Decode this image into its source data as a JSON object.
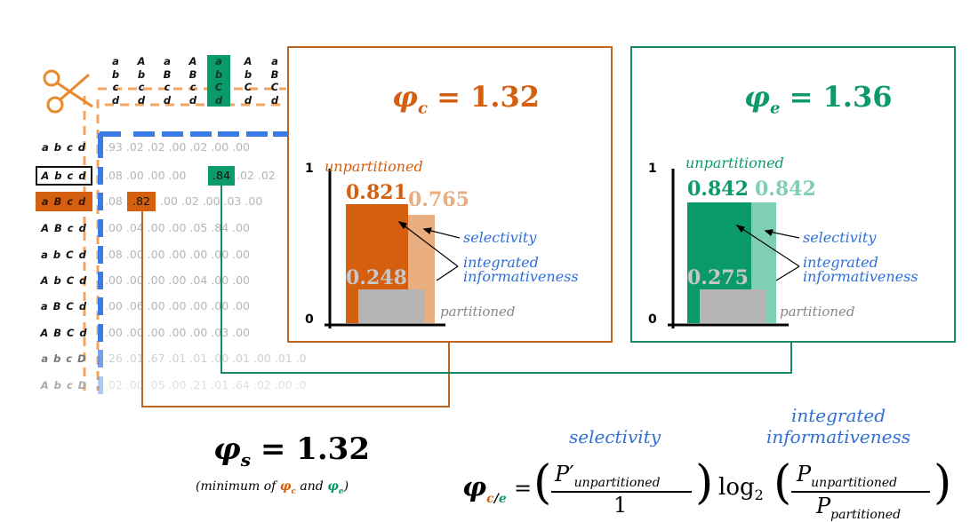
{
  "columns": [
    {
      "l1": "a",
      "l2": "b",
      "l3": "c",
      "l4": "d"
    },
    {
      "l1": "A",
      "l2": "b",
      "l3": "c",
      "l4": "d"
    },
    {
      "l1": "a",
      "l2": "B",
      "l3": "c",
      "l4": "d"
    },
    {
      "l1": "A",
      "l2": "B",
      "l3": "c",
      "l4": "d"
    },
    {
      "l1": "a",
      "l2": "b",
      "l3": "C",
      "l4": "d"
    },
    {
      "l1": "A",
      "l2": "b",
      "l3": "C",
      "l4": "d"
    },
    {
      "l1": "a",
      "l2": "B",
      "l3": "C",
      "l4": "d"
    }
  ],
  "rows": [
    {
      "label": "a b c d",
      "values": ".93 .02 .02 .00 .02 .00 .00"
    },
    {
      "label": "A b c d",
      "values": ".08 .00 .00 .00",
      "values2": ".02 .02"
    },
    {
      "label": "a B c d",
      "values": ".08",
      "values2": ".00 .02 .00 .03 .00"
    },
    {
      "label": "A B c d",
      "values": ".00 .04 .00 .00 .05 .84 .00"
    },
    {
      "label": "a b C d",
      "values": ".08 .00 .00 .00 .00 .00 .00"
    },
    {
      "label": "A b C d",
      "values": ".00 .00 .00 .00 .04 .00 .00"
    },
    {
      "label": "a B C d",
      "values": ".00 .06 .00 .00 .00 .00 .00"
    },
    {
      "label": "A B C d",
      "values": ".00 .00 .00 .00 .00 .03 .00"
    },
    {
      "label": "a b c D",
      "values": ".26 .01 .67 .01 .01 .00 .01 .00 .01 .0"
    },
    {
      "label": "A b c D",
      "values": ".02 .00 .05 .00 .21 .01 .64 .02 .00 .0"
    }
  ],
  "highlight_green": ".84",
  "highlight_orange": ".82",
  "panel_c": {
    "phi_symbol": "φ",
    "phi_sub": "c",
    "phi_value": "= 1.32",
    "axis_top": "1",
    "axis_bottom": "0",
    "unpartitioned_label": "unpartitioned",
    "bar1_value": "0.821",
    "bar2_value": "0.765",
    "partitioned_value": "0.248",
    "partitioned_label": "partitioned",
    "selectivity_label": "selectivity",
    "integrated_label1": "integrated",
    "integrated_label2": "informativeness",
    "color_main": "#d35f0f",
    "color_light": "#e8ae80"
  },
  "panel_e": {
    "phi_symbol": "φ",
    "phi_sub": "e",
    "phi_value": "= 1.36",
    "axis_top": "1",
    "axis_bottom": "0",
    "unpartitioned_label": "unpartitioned",
    "bar1_value": "0.842",
    "bar2_value": "0.842",
    "partitioned_value": "0.275",
    "partitioned_label": "partitioned",
    "selectivity_label": "selectivity",
    "integrated_label1": "integrated",
    "integrated_label2": "informativeness",
    "color_main": "#0a9a6c",
    "color_light": "#7fcfb5"
  },
  "phi_s": {
    "symbol": "φ",
    "sub": "s",
    "value": "= 1.32",
    "note_prefix": "(minimum of ",
    "note_and": " and ",
    "note_suffix": ")",
    "note_c": "φ",
    "note_c_sub": "c",
    "note_e": "φ",
    "note_e_sub": "e"
  },
  "formula": {
    "selectivity_label": "selectivity",
    "integrated_label1": "integrated",
    "integrated_label2": "informativeness",
    "phi": "φ",
    "sub_c": "c",
    "sub_slash": "/",
    "sub_e": "e",
    "equals": "=",
    "open_paren": "(",
    "close_paren": ")",
    "numerator1": "P′",
    "numerator1_sub": "unpartitioned",
    "denominator1": "1",
    "log": "log",
    "log_base": "2",
    "numerator2": "P",
    "numerator2_sub": "unpartitioned",
    "denominator2": "P",
    "denominator2_sub": "partitioned"
  }
}
